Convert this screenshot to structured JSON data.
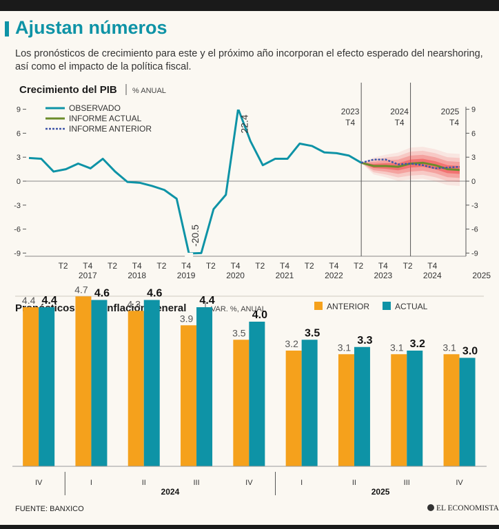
{
  "header": {
    "title": "Ajustan números",
    "subtitle": "Los pronósticos de crecimiento para este y el próximo año incorporan el efecto esperado del nearshoring, así como el impacto de la política fiscal."
  },
  "colors": {
    "teal": "#0e93a6",
    "green": "#6b8c2a",
    "blue_dotted": "#3f55a8",
    "orange": "#f5a11c",
    "fan": "#f04a4a",
    "dark": "#1a1a1a"
  },
  "footer": {
    "source": "FUENTE: BANXICO",
    "logo": "EL ECONOMISTA"
  },
  "chart_data": [
    {
      "type": "line",
      "title": "Crecimiento del PIB",
      "unit": "% ANUAL",
      "ylim": [
        -9,
        9
      ],
      "yticks": [
        -9,
        -6,
        -3,
        0,
        3,
        6,
        9
      ],
      "ytick_labels": [
        "-9",
        "-6",
        "-3",
        "0",
        "3",
        "6",
        "9"
      ],
      "quarter_labels": [
        "T2",
        "T4",
        "T2",
        "T4",
        "T2",
        "T4",
        "T2",
        "T4",
        "T2",
        "T4",
        "T2",
        "T4",
        "T2",
        "T4",
        "T2",
        "T4"
      ],
      "year_labels": [
        "2017",
        "2018",
        "2019",
        "2020",
        "2021",
        "2022",
        "2023",
        "2024",
        "2025"
      ],
      "legend": [
        "OBSERVADO",
        "INFORME ACTUAL",
        "INFORME ANTERIOR"
      ],
      "markers": [
        {
          "year": "2023",
          "quarter": "T4",
          "q_index": 27
        },
        {
          "year": "2024",
          "quarter": "T4",
          "q_index": 31
        },
        {
          "year": "2025",
          "quarter": "T4",
          "q_index": 35
        }
      ],
      "series": [
        {
          "name": "OBSERVADO",
          "start_q_index": 0,
          "values": [
            2.9,
            2.8,
            1.2,
            1.5,
            2.2,
            1.6,
            2.8,
            1.2,
            -0.1,
            -0.2,
            -0.6,
            -1.1,
            -2.2,
            -20.5,
            -9.0,
            -3.5,
            -1.7,
            22.4,
            5.0,
            2.0,
            2.8,
            2.8,
            4.7,
            4.4,
            3.6,
            3.5,
            3.2,
            2.3
          ]
        },
        {
          "name": "INFORME ACTUAL",
          "start_q_index": 27,
          "values": [
            2.3,
            1.9,
            1.9,
            1.8,
            2.2,
            2.3,
            2.0,
            1.5,
            1.4
          ]
        },
        {
          "name": "INFORME ANTERIOR",
          "start_q_index": 27,
          "values": [
            2.3,
            2.7,
            2.7,
            2.1,
            2.2,
            2.0,
            1.6,
            1.7,
            1.8
          ]
        }
      ],
      "annotations": [
        {
          "label": "-20.5",
          "q_index": 13,
          "value": -20.5
        },
        {
          "label": "22.4",
          "q_index": 17,
          "value": 22.4
        }
      ]
    },
    {
      "type": "bar",
      "title": "Pronósticos de la inflación general",
      "unit": "VAR. %, ANUAL",
      "categories": [
        "IV",
        "I",
        "II",
        "III",
        "IV",
        "I",
        "II",
        "III",
        "IV"
      ],
      "groups": [
        {
          "label": "",
          "from": 0,
          "to": 0
        },
        {
          "label": "2024",
          "from": 1,
          "to": 4
        },
        {
          "label": "2025",
          "from": 5,
          "to": 8
        }
      ],
      "series": [
        {
          "name": "ANTERIOR",
          "values": [
            4.4,
            4.7,
            4.3,
            3.9,
            3.5,
            3.2,
            3.1,
            3.1,
            3.1
          ]
        },
        {
          "name": "ACTUAL",
          "values": [
            4.4,
            4.6,
            4.6,
            4.4,
            4.0,
            3.5,
            3.3,
            3.2,
            3.0
          ]
        }
      ],
      "value_labels": {
        "ANTERIOR": [
          "4.4",
          "4.7",
          "4.3",
          "3.9",
          "3.5",
          "3.2",
          "3.1",
          "3.1",
          "3.1"
        ],
        "ACTUAL": [
          "4.4",
          "4.6",
          "4.6",
          "4.4",
          "4.0",
          "3.5",
          "3.3",
          "3.2",
          "3.0"
        ]
      },
      "ylim": [
        0,
        4.9
      ]
    }
  ]
}
